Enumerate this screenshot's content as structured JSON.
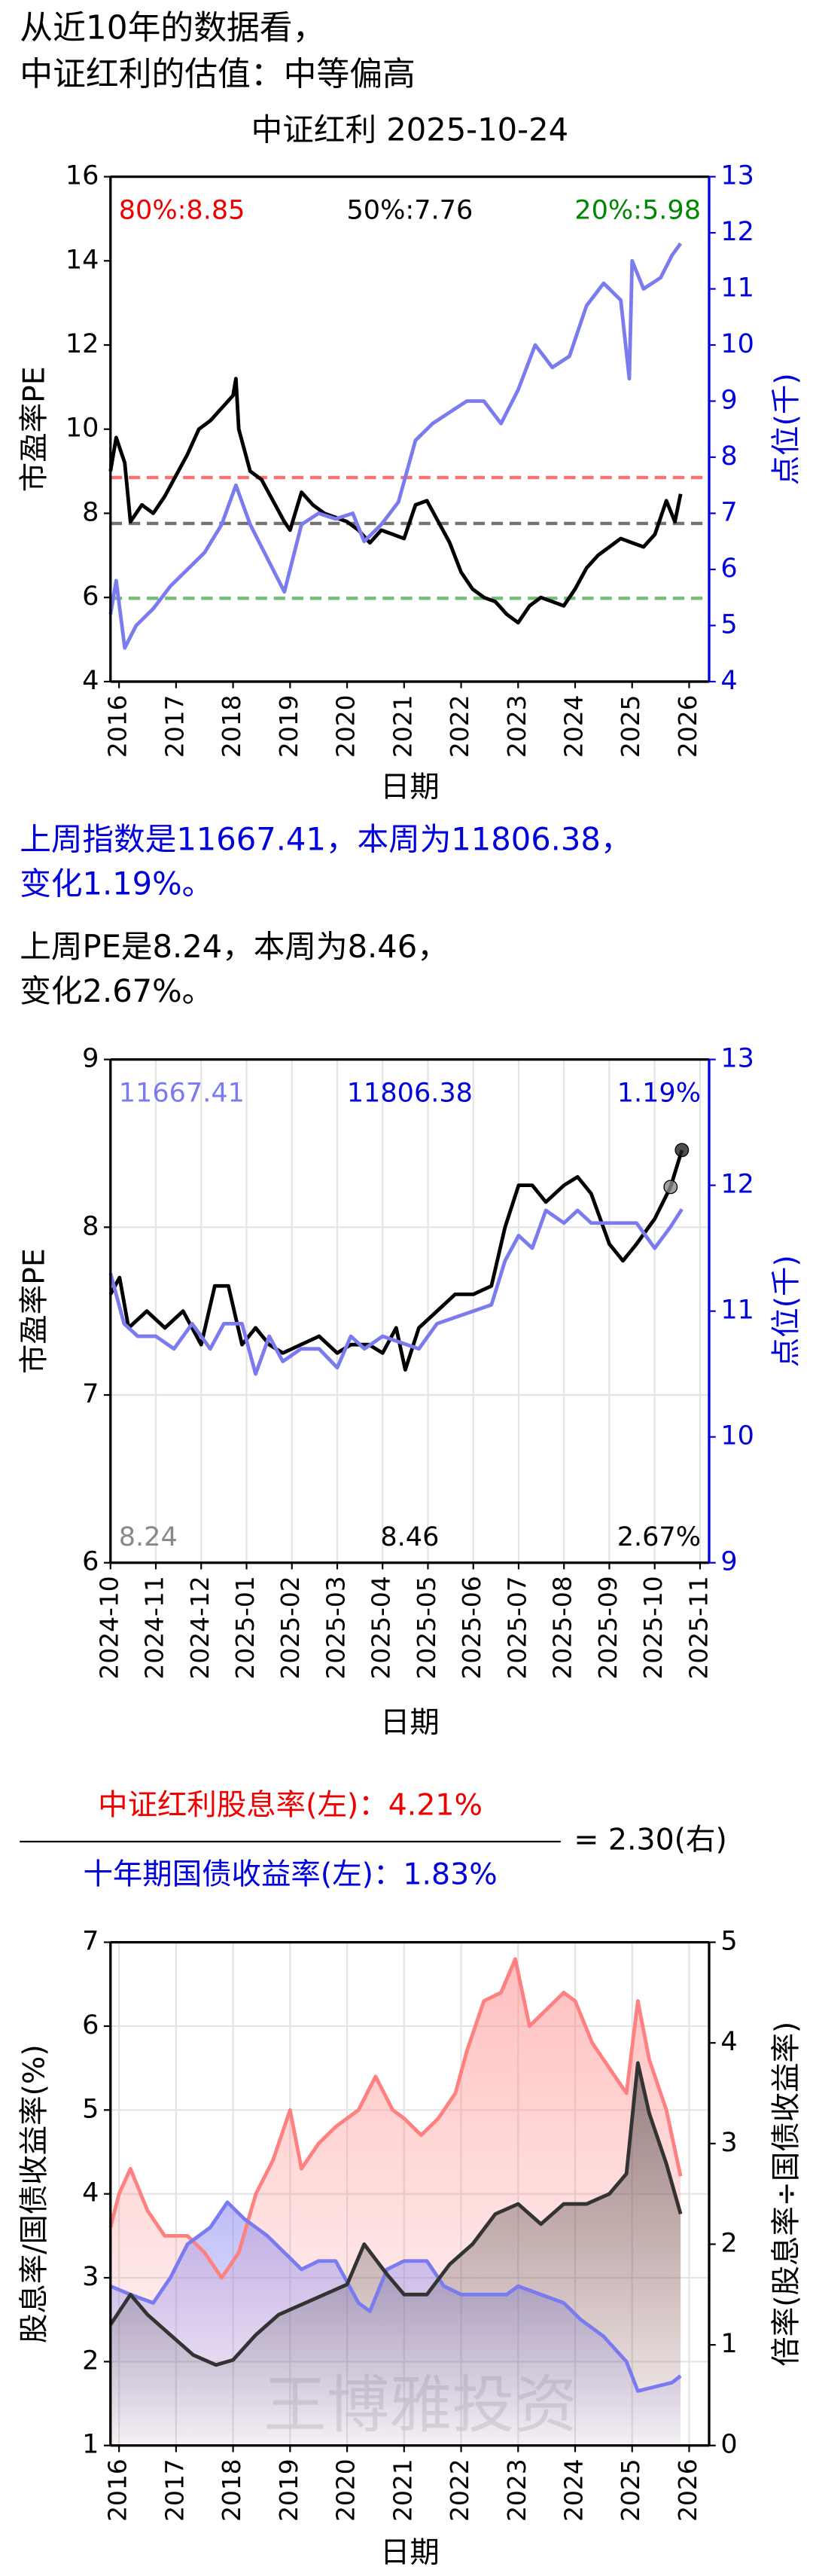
{
  "header": {
    "line1": "从近10年的数据看，",
    "line2": "中证红利的估值：中等偏高"
  },
  "summary": {
    "index_line1": "上周指数是11667.41，本周为11806.38，",
    "index_line2": "变化1.19%。",
    "pe_line1": "上周PE是8.24，本周为8.46，",
    "pe_line2": "变化2.67%。"
  },
  "chart_data": [
    {
      "type": "line",
      "title": "中证红利 2025-10-24",
      "xlabel": "日期",
      "ylabel": "市盈率PE",
      "y2label": "点位(千)",
      "y2_color": "#0000dd",
      "xlim": [
        2015.85,
        2026.35
      ],
      "xticks": [
        2016,
        2017,
        2018,
        2019,
        2020,
        2021,
        2022,
        2023,
        2024,
        2025,
        2026
      ],
      "ylim": [
        4,
        16
      ],
      "yticks": [
        4,
        6,
        8,
        10,
        12,
        14,
        16
      ],
      "y2lim": [
        4,
        13
      ],
      "y2ticks": [
        4,
        5,
        6,
        7,
        8,
        9,
        10,
        11,
        12,
        13
      ],
      "grid": false,
      "reference_lines": [
        {
          "label": "80%:8.85",
          "value": 8.85,
          "color": "#ee0000"
        },
        {
          "label": "50%:7.76",
          "value": 7.76,
          "color": "#000000"
        },
        {
          "label": "20%:5.98",
          "value": 5.98,
          "color": "#008800"
        }
      ],
      "series": [
        {
          "name": "PE",
          "color": "#000000",
          "x": [
            2015.85,
            2015.95,
            2016.1,
            2016.2,
            2016.4,
            2016.6,
            2016.8,
            2017.0,
            2017.2,
            2017.4,
            2017.6,
            2017.8,
            2018.0,
            2018.05,
            2018.1,
            2018.3,
            2018.5,
            2018.7,
            2018.9,
            2019.0,
            2019.2,
            2019.4,
            2019.6,
            2019.8,
            2020.0,
            2020.2,
            2020.4,
            2020.6,
            2020.8,
            2021.0,
            2021.2,
            2021.4,
            2021.6,
            2021.8,
            2022.0,
            2022.2,
            2022.4,
            2022.6,
            2022.8,
            2023.0,
            2023.2,
            2023.4,
            2023.6,
            2023.8,
            2024.0,
            2024.2,
            2024.4,
            2024.6,
            2024.8,
            2025.0,
            2025.2,
            2025.4,
            2025.6,
            2025.75,
            2025.85
          ],
          "values": [
            9.0,
            9.8,
            9.2,
            7.8,
            8.2,
            8.0,
            8.4,
            8.9,
            9.4,
            10.0,
            10.2,
            10.5,
            10.8,
            11.2,
            10.0,
            9.0,
            8.8,
            8.3,
            7.8,
            7.6,
            8.5,
            8.2,
            8.0,
            7.9,
            7.8,
            7.6,
            7.3,
            7.6,
            7.5,
            7.4,
            8.2,
            8.3,
            7.8,
            7.3,
            6.6,
            6.2,
            6.0,
            5.9,
            5.6,
            5.4,
            5.8,
            6.0,
            5.9,
            5.8,
            6.2,
            6.7,
            7.0,
            7.2,
            7.4,
            7.3,
            7.2,
            7.5,
            8.3,
            7.8,
            8.46
          ]
        },
        {
          "name": "点位",
          "color": "#7b7bf0",
          "axis": "y2",
          "x": [
            2015.85,
            2015.95,
            2016.1,
            2016.3,
            2016.6,
            2016.9,
            2017.2,
            2017.5,
            2017.8,
            2018.05,
            2018.3,
            2018.6,
            2018.9,
            2019.2,
            2019.5,
            2019.8,
            2020.1,
            2020.3,
            2020.6,
            2020.9,
            2021.2,
            2021.5,
            2021.8,
            2022.1,
            2022.4,
            2022.7,
            2023.0,
            2023.3,
            2023.6,
            2023.9,
            2024.2,
            2024.5,
            2024.8,
            2024.95,
            2025.0,
            2025.2,
            2025.5,
            2025.7,
            2025.85
          ],
          "values": [
            5.2,
            5.8,
            4.6,
            5.0,
            5.3,
            5.7,
            6.0,
            6.3,
            6.8,
            7.5,
            6.8,
            6.2,
            5.6,
            6.8,
            7.0,
            6.9,
            7.0,
            6.5,
            6.8,
            7.2,
            8.3,
            8.6,
            8.8,
            9.0,
            9.0,
            8.6,
            9.2,
            10.0,
            9.6,
            9.8,
            10.7,
            11.1,
            10.8,
            9.4,
            11.5,
            11.0,
            11.2,
            11.6,
            11.81
          ]
        }
      ]
    },
    {
      "type": "line",
      "xlabel": "日期",
      "ylabel": "市盈率PE",
      "y2label": "点位(千)",
      "y2_color": "#0000dd",
      "xlim": [
        0,
        13.2
      ],
      "xticks": [
        {
          "value": 0,
          "label": "2024-10"
        },
        {
          "value": 1,
          "label": "2024-11"
        },
        {
          "value": 2,
          "label": "2024-12"
        },
        {
          "value": 3,
          "label": "2025-01"
        },
        {
          "value": 4,
          "label": "2025-02"
        },
        {
          "value": 5,
          "label": "2025-03"
        },
        {
          "value": 6,
          "label": "2025-04"
        },
        {
          "value": 7,
          "label": "2025-05"
        },
        {
          "value": 8,
          "label": "2025-06"
        },
        {
          "value": 9,
          "label": "2025-07"
        },
        {
          "value": 10,
          "label": "2025-08"
        },
        {
          "value": 11,
          "label": "2025-09"
        },
        {
          "value": 12,
          "label": "2025-10"
        },
        {
          "value": 13,
          "label": "2025-11"
        }
      ],
      "ylim": [
        6,
        9
      ],
      "yticks": [
        6,
        7,
        8,
        9
      ],
      "y2lim": [
        9,
        13
      ],
      "y2ticks": [
        9,
        10,
        11,
        12,
        13
      ],
      "grid": true,
      "annotations_top": [
        {
          "text": "11667.41",
          "color": "#7b7bf0"
        },
        {
          "text": "11806.38",
          "color": "#0000dd"
        },
        {
          "text": "1.19%",
          "color": "#0000dd"
        }
      ],
      "annotations_bottom": [
        {
          "text": "8.24",
          "color": "#888888"
        },
        {
          "text": "8.46",
          "color": "#000000"
        },
        {
          "text": "2.67%",
          "color": "#000000"
        }
      ],
      "series": [
        {
          "name": "PE",
          "color": "#000000",
          "end_markers": [
            "#888888",
            "#222222"
          ],
          "x": [
            0,
            0.2,
            0.4,
            0.8,
            1.2,
            1.6,
            2.0,
            2.3,
            2.6,
            2.9,
            3.2,
            3.5,
            3.8,
            4.2,
            4.6,
            5.0,
            5.3,
            5.7,
            6.0,
            6.3,
            6.5,
            6.8,
            7.2,
            7.6,
            8.0,
            8.4,
            8.7,
            9.0,
            9.3,
            9.6,
            10.0,
            10.3,
            10.6,
            11.0,
            11.3,
            11.6,
            12.0,
            12.35,
            12.6
          ],
          "values": [
            7.6,
            7.7,
            7.4,
            7.5,
            7.4,
            7.5,
            7.3,
            7.65,
            7.65,
            7.3,
            7.4,
            7.3,
            7.25,
            7.3,
            7.35,
            7.25,
            7.3,
            7.3,
            7.25,
            7.4,
            7.15,
            7.4,
            7.5,
            7.6,
            7.6,
            7.65,
            8.0,
            8.25,
            8.25,
            8.15,
            8.25,
            8.3,
            8.2,
            7.9,
            7.8,
            7.9,
            8.05,
            8.24,
            8.46
          ]
        },
        {
          "name": "点位",
          "color": "#7b7bf0",
          "axis": "y2",
          "x": [
            0,
            0.3,
            0.6,
            1.0,
            1.4,
            1.8,
            2.2,
            2.5,
            2.9,
            3.2,
            3.5,
            3.8,
            4.2,
            4.6,
            5.0,
            5.3,
            5.6,
            6.0,
            6.4,
            6.8,
            7.2,
            7.6,
            8.0,
            8.4,
            8.7,
            9.0,
            9.3,
            9.6,
            10.0,
            10.3,
            10.6,
            11.0,
            11.3,
            11.6,
            12.0,
            12.35,
            12.6
          ],
          "values": [
            11.3,
            10.9,
            10.8,
            10.8,
            10.7,
            10.9,
            10.7,
            10.9,
            10.9,
            10.5,
            10.8,
            10.6,
            10.7,
            10.7,
            10.55,
            10.8,
            10.7,
            10.8,
            10.75,
            10.7,
            10.9,
            10.95,
            11.0,
            11.05,
            11.4,
            11.6,
            11.5,
            11.8,
            11.7,
            11.8,
            11.7,
            11.7,
            11.7,
            11.7,
            11.5,
            11.67,
            11.81
          ]
        }
      ]
    },
    {
      "type": "area",
      "numerator_label": "中证红利股息率(左)：4.21%",
      "denominator_label": "十年期国债收益率(左)：1.83%",
      "result_label": "= 2.30(右)",
      "watermark": "王博雅投资",
      "xlabel": "日期",
      "ylabel": "股息率/国债收益率(%)",
      "y2label": "倍率(股息率÷国债收益率)",
      "y2_color": "#000000",
      "xlim": [
        2015.85,
        2026.35
      ],
      "xticks": [
        2016,
        2017,
        2018,
        2019,
        2020,
        2021,
        2022,
        2023,
        2024,
        2025,
        2026
      ],
      "ylim": [
        1,
        7
      ],
      "yticks": [
        1,
        2,
        3,
        4,
        5,
        6,
        7
      ],
      "y2lim": [
        0,
        5
      ],
      "y2ticks": [
        0,
        1,
        2,
        3,
        4,
        5
      ],
      "grid": true,
      "series": [
        {
          "name": "中证红利股息率",
          "color": "#ff8080",
          "x": [
            2015.85,
            2016.0,
            2016.2,
            2016.5,
            2016.8,
            2017.2,
            2017.5,
            2017.8,
            2018.1,
            2018.4,
            2018.7,
            2019.0,
            2019.2,
            2019.5,
            2019.8,
            2020.2,
            2020.5,
            2020.8,
            2021.0,
            2021.3,
            2021.6,
            2021.9,
            2022.1,
            2022.4,
            2022.7,
            2022.95,
            2023.2,
            2023.5,
            2023.8,
            2024.0,
            2024.3,
            2024.6,
            2024.9,
            2025.1,
            2025.3,
            2025.6,
            2025.85
          ],
          "values": [
            3.6,
            4.0,
            4.3,
            3.8,
            3.5,
            3.5,
            3.3,
            3.0,
            3.3,
            4.0,
            4.4,
            5.0,
            4.3,
            4.6,
            4.8,
            5.0,
            5.4,
            5.0,
            4.9,
            4.7,
            4.9,
            5.2,
            5.7,
            6.3,
            6.4,
            6.8,
            6.0,
            6.2,
            6.4,
            6.3,
            5.8,
            5.5,
            5.2,
            6.3,
            5.6,
            5.0,
            4.21
          ]
        },
        {
          "name": "十年期国债收益率",
          "color": "#7b7bf0",
          "x": [
            2015.85,
            2016.2,
            2016.6,
            2016.9,
            2017.2,
            2017.6,
            2017.9,
            2018.2,
            2018.6,
            2018.9,
            2019.2,
            2019.5,
            2019.8,
            2020.2,
            2020.4,
            2020.7,
            2021.0,
            2021.4,
            2021.7,
            2022.0,
            2022.4,
            2022.8,
            2023.0,
            2023.4,
            2023.8,
            2024.1,
            2024.5,
            2024.9,
            2025.1,
            2025.4,
            2025.7,
            2025.85
          ],
          "values": [
            2.9,
            2.8,
            2.7,
            3.0,
            3.4,
            3.6,
            3.9,
            3.7,
            3.5,
            3.3,
            3.1,
            3.2,
            3.2,
            2.7,
            2.6,
            3.1,
            3.2,
            3.2,
            2.9,
            2.8,
            2.8,
            2.8,
            2.9,
            2.8,
            2.7,
            2.5,
            2.3,
            2.0,
            1.65,
            1.7,
            1.75,
            1.83
          ]
        },
        {
          "name": "倍率",
          "color": "#333333",
          "axis": "y2",
          "x": [
            2015.85,
            2016.2,
            2016.5,
            2016.9,
            2017.3,
            2017.7,
            2018.0,
            2018.4,
            2018.8,
            2019.2,
            2019.6,
            2020.0,
            2020.3,
            2020.7,
            2021.0,
            2021.4,
            2021.8,
            2022.2,
            2022.6,
            2023.0,
            2023.4,
            2023.8,
            2024.2,
            2024.6,
            2024.9,
            2025.1,
            2025.3,
            2025.6,
            2025.85
          ],
          "values": [
            1.2,
            1.5,
            1.3,
            1.1,
            0.9,
            0.8,
            0.85,
            1.1,
            1.3,
            1.4,
            1.5,
            1.6,
            2.0,
            1.7,
            1.5,
            1.5,
            1.8,
            2.0,
            2.3,
            2.4,
            2.2,
            2.4,
            2.4,
            2.5,
            2.7,
            3.8,
            3.3,
            2.8,
            2.3
          ]
        }
      ]
    }
  ]
}
